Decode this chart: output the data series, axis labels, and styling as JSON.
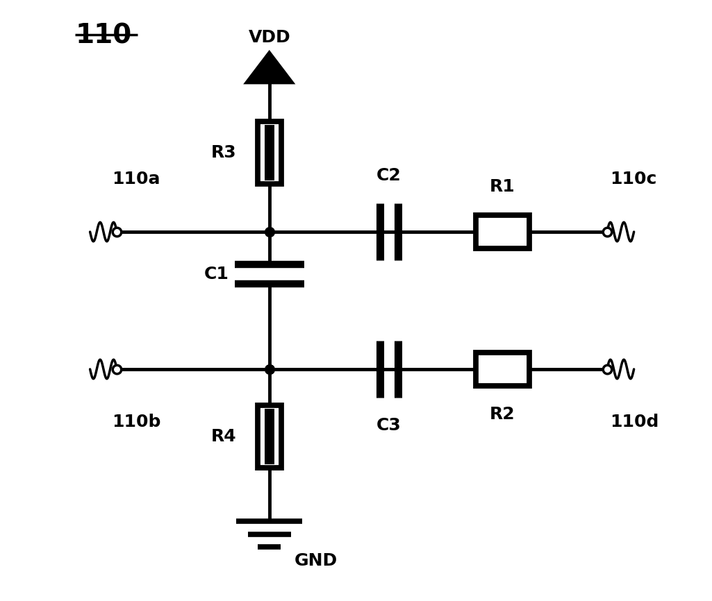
{
  "title": "110",
  "bg_color": "#ffffff",
  "line_color": "#000000",
  "lw": 3.5,
  "fig_width": 10.25,
  "fig_height": 8.66,
  "labels": {
    "title": "110",
    "vdd": "VDD",
    "gnd": "GND",
    "r1": "R1",
    "r2": "R2",
    "r3": "R3",
    "r4": "R4",
    "c1": "C1",
    "c2": "C2",
    "c3": "C3",
    "node_a": "110a",
    "node_b": "110b",
    "node_c": "110c",
    "node_d": "110d"
  }
}
